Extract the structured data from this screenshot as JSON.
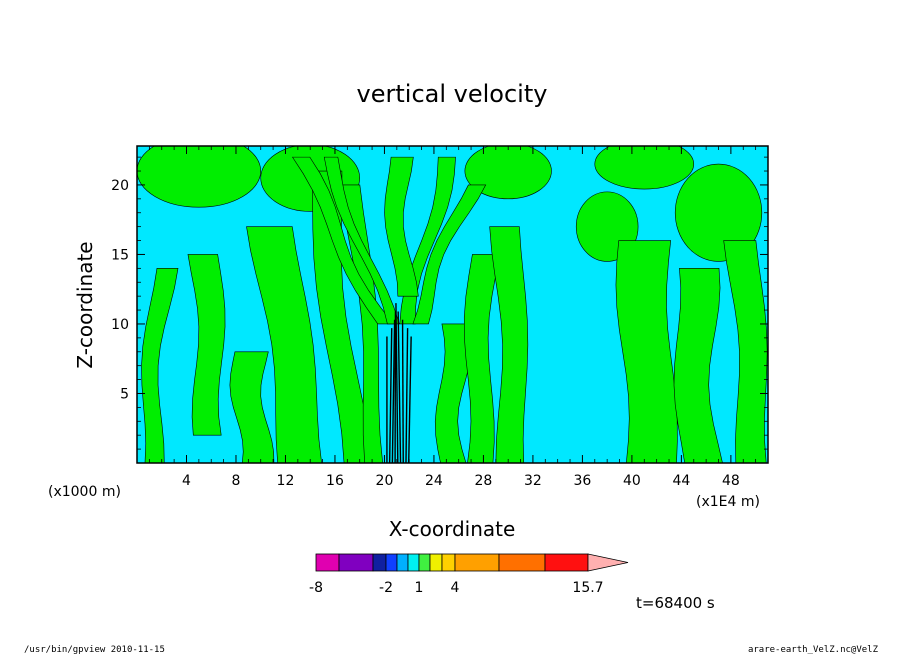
{
  "chart_data": {
    "type": "heatmap",
    "title": "vertical velocity",
    "xlabel": "X-coordinate",
    "ylabel": "Z-coordinate",
    "x_unit_left": "(x1000 m)",
    "x_unit_right": "(x1E4 m)",
    "xlim": [
      0,
      51
    ],
    "ylim": [
      0,
      22.8
    ],
    "x_ticks": [
      4,
      8,
      12,
      16,
      20,
      24,
      28,
      32,
      36,
      40,
      44,
      48
    ],
    "y_ticks": [
      5,
      10,
      15,
      20
    ],
    "colorbar": {
      "tick_labels": [
        "-8",
        "-2",
        "1",
        "4",
        "15.7"
      ],
      "colors": [
        "#e000b0",
        "#8000c0",
        "#1020a0",
        "#1040ff",
        "#00b0ff",
        "#00f0f0",
        "#40f040",
        "#f0f000",
        "#ffd000",
        "#ffa000",
        "#ff7000",
        "#ff1010",
        "#ff7070",
        "#ffb0b0"
      ]
    },
    "background_colors": {
      "negative": "#00e8ff",
      "positive": "#00ee00",
      "strong_core": "#000000"
    },
    "time_label": "t=68400 s"
  },
  "footer": {
    "left": "/usr/bin/gpview   2010-11-15",
    "right": "arare-earth_VelZ.nc@VelZ"
  }
}
